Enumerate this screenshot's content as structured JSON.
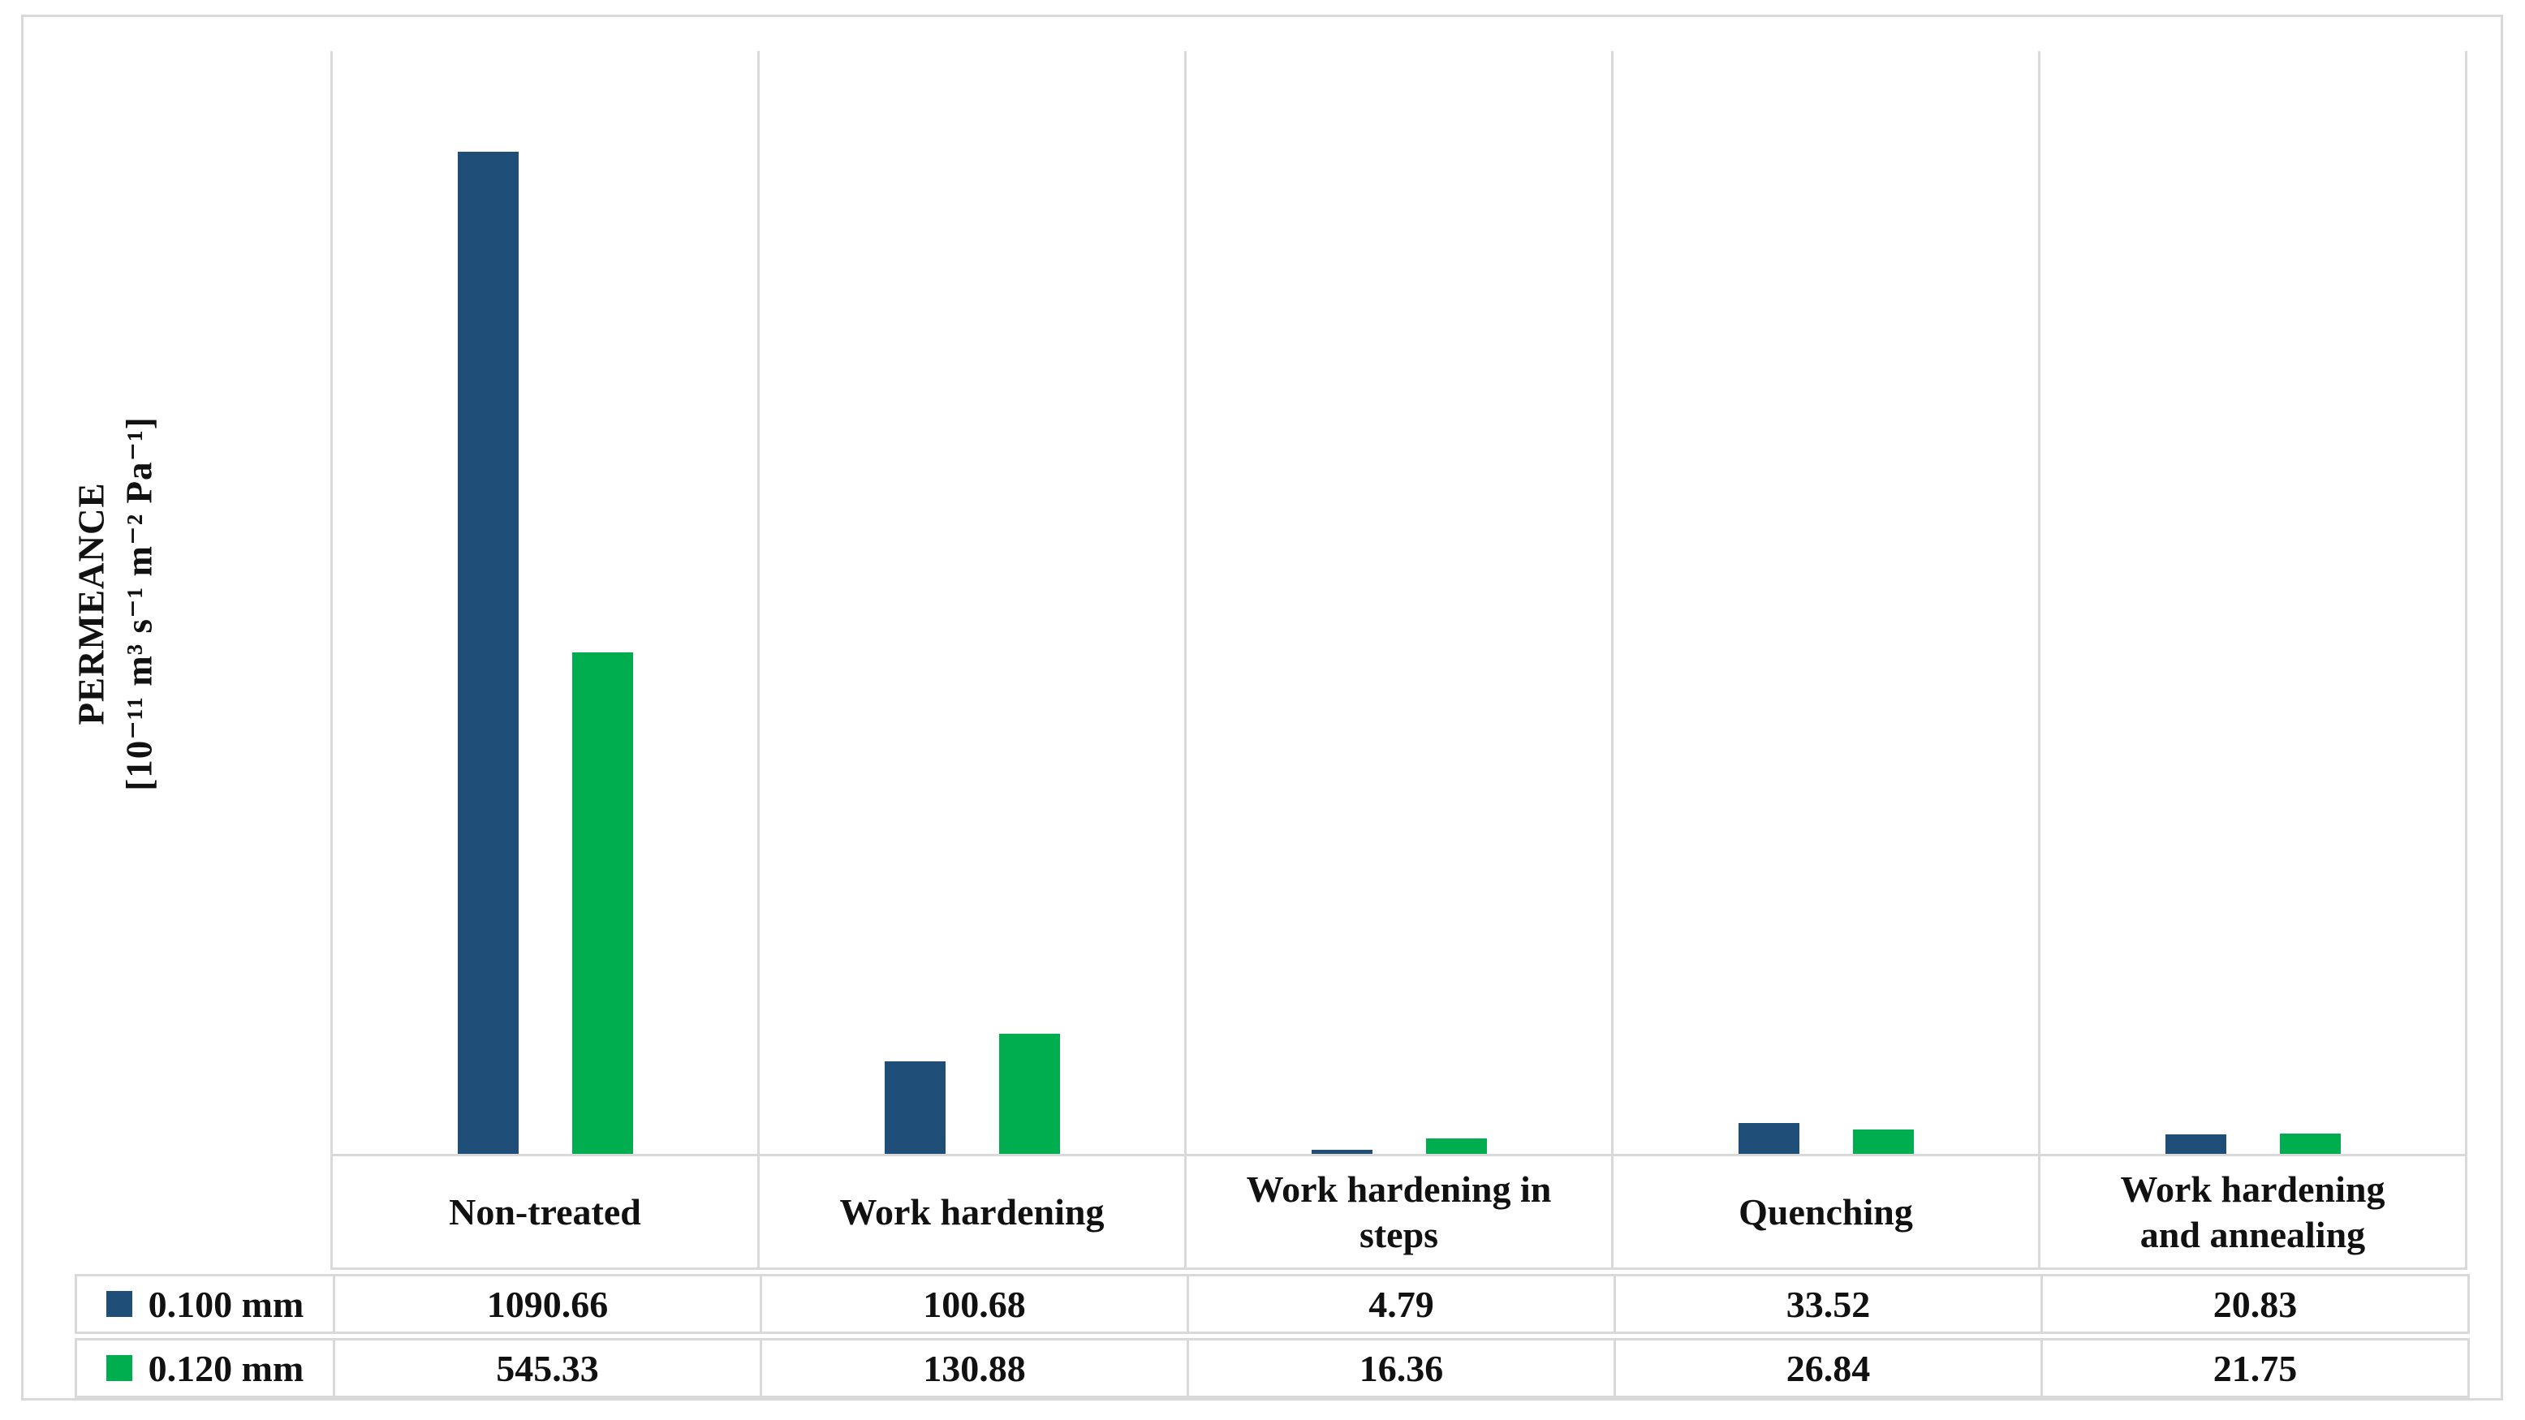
{
  "chart_data": {
    "type": "bar",
    "title": "",
    "y_axis": {
      "title": "PERMEANCE",
      "unit": "[10⁻¹¹ m³ s⁻¹ m⁻² Pa⁻¹]",
      "ylim": [
        0,
        1200
      ],
      "tick_labels_visible": false
    },
    "categories": [
      "Non-treated",
      "Work hardening",
      "Work hardening in\nsteps",
      "Quenching",
      "Work hardening\nand annealing"
    ],
    "series": [
      {
        "name": "0.100 mm",
        "color": "#1F4E79",
        "values": [
          1090.66,
          100.68,
          4.79,
          33.52,
          20.83
        ]
      },
      {
        "name": "0.120 mm",
        "color": "#00AE50",
        "values": [
          545.33,
          130.88,
          16.36,
          26.84,
          21.75
        ]
      }
    ],
    "legend_position": "data-table-left",
    "grid": {
      "vertical_separators": true,
      "border_color": "#D9D9D9"
    },
    "data_table_visible": true
  }
}
